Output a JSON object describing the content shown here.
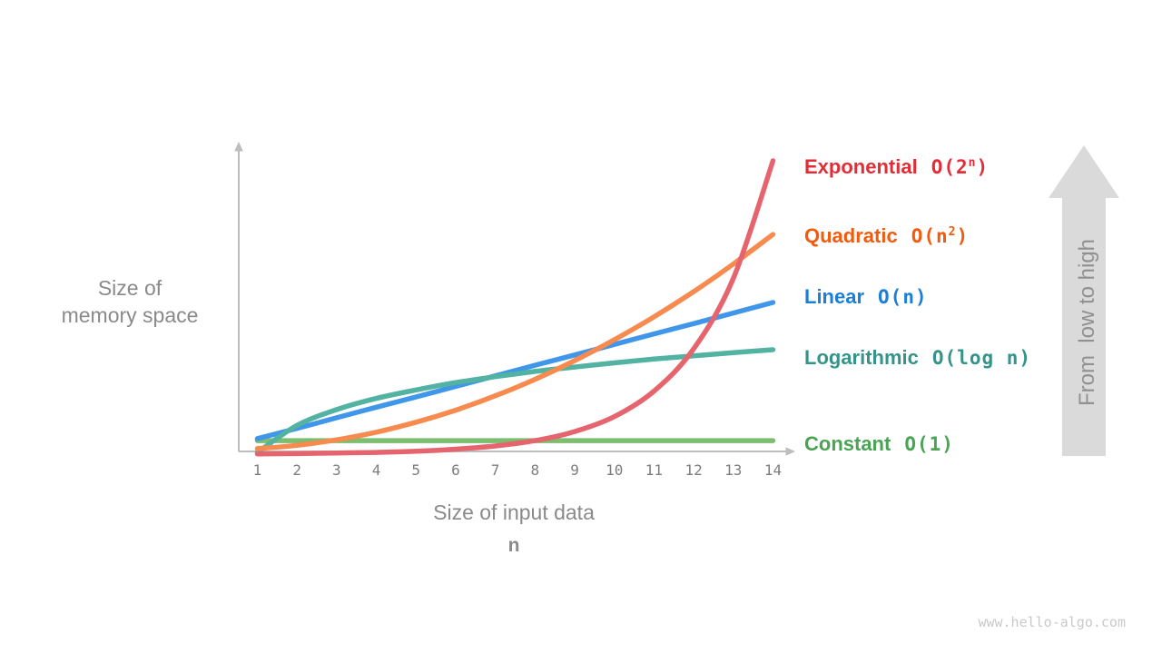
{
  "page": {
    "watermark": "www.hello-algo.com"
  },
  "axes": {
    "y_label_line1": "Size of",
    "y_label_line2": "memory space",
    "x_label": "Size of input data",
    "x_label_symbol": "n",
    "axis_color": "#bdbdbd"
  },
  "annotation_arrow": {
    "label": "From  low to high",
    "fill": "#dadada",
    "text_color": "#909090"
  },
  "legend": {
    "items": [
      {
        "name": "Exponential",
        "color": "#e22d36",
        "formula_pre": "O(2",
        "formula_sup": "n",
        "formula_post": ")"
      },
      {
        "name": "Quadratic",
        "color": "#f25b0e",
        "formula_pre": "O(n",
        "formula_sup": "2",
        "formula_post": ")"
      },
      {
        "name": "Linear",
        "color": "#1b7fd6",
        "formula_pre": "O(n",
        "formula_sup": "",
        "formula_post": ")"
      },
      {
        "name": "Logarithmic",
        "color": "#35948a",
        "formula_pre": "O(log n",
        "formula_sup": "",
        "formula_post": ")"
      },
      {
        "name": "Constant",
        "color": "#4aa454",
        "formula_pre": "O(1",
        "formula_sup": "",
        "formula_post": ")"
      }
    ]
  },
  "chart_data": {
    "type": "line",
    "title": "",
    "xlabel": "Size of input data",
    "xlabel_symbol": "n",
    "ylabel": "Size of memory space",
    "x_ticks": [
      "1",
      "2",
      "3",
      "4",
      "5",
      "6",
      "7",
      "8",
      "9",
      "10",
      "11",
      "12",
      "13",
      "14"
    ],
    "x_range": [
      1,
      14
    ],
    "y_axis": "qualitative, unlabeled (arrow annotation reads From low to high)",
    "grid": false,
    "legend_position": "right",
    "values_note": "curves are qualitative; values_normalized are plotted heights as fraction of plot height, each curve independently scaled",
    "series": [
      {
        "key": "constant",
        "label": "Constant O(1)",
        "function": "1",
        "color": "#7cbd70",
        "values_normalized": [
          0.046,
          0.046,
          0.046,
          0.046,
          0.046,
          0.046,
          0.046,
          0.046,
          0.046,
          0.046,
          0.046,
          0.046,
          0.046,
          0.046
        ]
      },
      {
        "key": "linear",
        "label": "Linear O(n)",
        "function": "n",
        "color": "#4096e8",
        "values_normalized": [
          0.053,
          0.088,
          0.124,
          0.16,
          0.195,
          0.231,
          0.267,
          0.303,
          0.338,
          0.374,
          0.41,
          0.445,
          0.481,
          0.517
        ]
      },
      {
        "key": "logarithmic",
        "label": "Logarithmic O(log n)",
        "function": "log n",
        "color": "#52b3a2",
        "values_normalized": [
          0.006,
          0.098,
          0.152,
          0.19,
          0.219,
          0.244,
          0.264,
          0.282,
          0.297,
          0.311,
          0.324,
          0.335,
          0.346,
          0.356
        ]
      },
      {
        "key": "quadratic",
        "label": "Quadratic O(n^2)",
        "function": "n^2",
        "color": "#f78b4f",
        "values_normalized": [
          0.019,
          0.03,
          0.049,
          0.075,
          0.109,
          0.15,
          0.199,
          0.255,
          0.319,
          0.39,
          0.468,
          0.554,
          0.648,
          0.749
        ]
      },
      {
        "key": "exponential",
        "label": "Exponential O(2^n)",
        "function": "2^n",
        "color": "#e5646e",
        "values_normalized": [
          0.001,
          0.002,
          0.004,
          0.006,
          0.01,
          0.017,
          0.028,
          0.046,
          0.077,
          0.128,
          0.215,
          0.359,
          0.599,
          1.0
        ]
      }
    ]
  }
}
